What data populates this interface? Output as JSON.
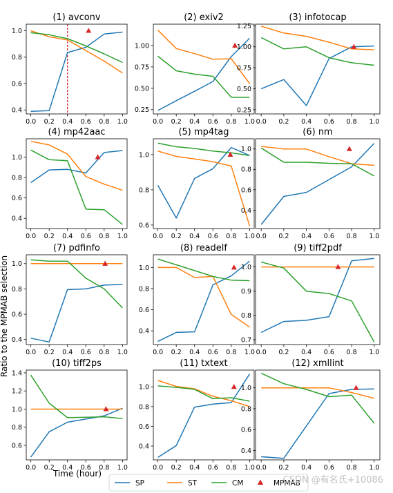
{
  "figure": {
    "ylabel": "Ratio to the MPMAB selection",
    "xlabel": "Time (hour)",
    "watermark": "CSDN @有名氏+10086",
    "colors": {
      "SP": "#1f77b4",
      "ST": "#ff7f0e",
      "CM": "#2ca02c",
      "MPMAB": "#d62728"
    }
  },
  "legend": [
    {
      "name": "SP",
      "label": "SP",
      "color": "#1f77b4",
      "kind": "line"
    },
    {
      "name": "ST",
      "label": "ST",
      "color": "#ff7f0e",
      "kind": "line"
    },
    {
      "name": "CM",
      "label": "CM",
      "color": "#2ca02c",
      "kind": "line"
    },
    {
      "name": "MPMAB",
      "label": "MPMAB",
      "color": "#d62728",
      "kind": "triangle"
    }
  ],
  "chart_data": [
    {
      "type": "line",
      "title": "(1) avconv",
      "x": [
        0,
        0.2,
        0.4,
        0.6,
        0.8,
        1.0
      ],
      "ylim": [
        0.37,
        1.05
      ],
      "yticks": [
        0.4,
        0.6,
        0.8,
        1.0
      ],
      "ytick_labels": [
        "0.4",
        "0.6",
        "0.8",
        "1.0"
      ],
      "series": [
        {
          "name": "SP",
          "values": [
            0.39,
            0.395,
            0.835,
            0.875,
            0.975,
            0.99
          ]
        },
        {
          "name": "ST",
          "values": [
            1.0,
            0.955,
            0.93,
            0.85,
            0.77,
            0.68
          ]
        },
        {
          "name": "CM",
          "values": [
            0.985,
            0.97,
            0.94,
            0.885,
            0.825,
            0.76
          ]
        }
      ],
      "mpmab": {
        "x": 0.63,
        "y": 1.0
      },
      "vline": 0.4
    },
    {
      "type": "line",
      "title": "(2) exiv2",
      "x": [
        0,
        0.2,
        0.4,
        0.6,
        0.8,
        1.0
      ],
      "ylim": [
        0.2,
        1.25
      ],
      "yticks": [
        0.25,
        0.5,
        0.75,
        1.0
      ],
      "ytick_labels": [
        "0.25",
        "0.50",
        "0.75",
        "1.00"
      ],
      "series": [
        {
          "name": "SP",
          "values": [
            0.24,
            0.355,
            0.465,
            0.58,
            0.87,
            1.085
          ]
        },
        {
          "name": "ST",
          "values": [
            1.18,
            0.965,
            0.905,
            0.84,
            0.845,
            0.555
          ]
        },
        {
          "name": "CM",
          "values": [
            0.875,
            0.705,
            0.665,
            0.64,
            0.395,
            0.395
          ]
        }
      ],
      "mpmab": {
        "x": 0.84,
        "y": 1.0
      }
    },
    {
      "type": "line",
      "title": "(3) infotocap",
      "x": [
        0,
        0.2,
        0.4,
        0.6,
        0.8,
        1.0
      ],
      "ylim": [
        0.2,
        1.27
      ],
      "yticks": [
        0.25,
        0.5,
        0.75,
        1.0,
        1.25
      ],
      "ytick_labels": [
        "0.25",
        "0.50",
        "0.75",
        "1.00",
        "1.25"
      ],
      "series": [
        {
          "name": "SP",
          "values": [
            0.5,
            0.61,
            0.3,
            0.86,
            1.0,
            1.01
          ]
        },
        {
          "name": "ST",
          "values": [
            1.245,
            1.165,
            1.125,
            1.055,
            0.975,
            0.965
          ]
        },
        {
          "name": "CM",
          "values": [
            1.11,
            0.975,
            1.0,
            0.87,
            0.81,
            0.78
          ]
        }
      ],
      "mpmab": {
        "x": 0.82,
        "y": 1.0
      }
    },
    {
      "type": "line",
      "title": "(4) mp42aac",
      "x": [
        0,
        0.2,
        0.4,
        0.6,
        0.8,
        1.0
      ],
      "ylim": [
        0.3,
        1.18
      ],
      "yticks": [
        0.4,
        0.6,
        0.8,
        1.0
      ],
      "ytick_labels": [
        "0.4",
        "0.6",
        "0.8",
        "1.0"
      ],
      "series": [
        {
          "name": "SP",
          "values": [
            0.75,
            0.875,
            0.88,
            0.845,
            1.045,
            1.065
          ]
        },
        {
          "name": "ST",
          "values": [
            1.155,
            1.12,
            1.03,
            0.81,
            0.735,
            0.675
          ]
        },
        {
          "name": "CM",
          "values": [
            1.07,
            0.975,
            0.965,
            0.49,
            0.485,
            0.34
          ]
        }
      ],
      "mpmab": {
        "x": 0.73,
        "y": 1.0
      }
    },
    {
      "type": "line",
      "title": "(5) mp4tag",
      "x": [
        0,
        0.2,
        0.4,
        0.6,
        0.8,
        1.0
      ],
      "ylim": [
        0.58,
        1.09
      ],
      "yticks": [
        0.6,
        0.8,
        1.0
      ],
      "ytick_labels": [
        "0.6",
        "0.8",
        "1.0"
      ],
      "series": [
        {
          "name": "SP",
          "values": [
            0.825,
            0.64,
            0.865,
            0.92,
            1.04,
            0.995
          ]
        },
        {
          "name": "ST",
          "values": [
            1.02,
            0.99,
            0.975,
            0.96,
            0.935,
            0.595
          ]
        },
        {
          "name": "CM",
          "values": [
            1.065,
            1.045,
            1.035,
            1.02,
            1.01,
            0.995
          ]
        }
      ],
      "mpmab": {
        "x": 0.79,
        "y": 1.0
      }
    },
    {
      "type": "line",
      "title": "(6) nm",
      "x": [
        0,
        0.2,
        0.4,
        0.6,
        0.8,
        1.0
      ],
      "ylim": [
        0.22,
        1.1
      ],
      "yticks": [
        0.4,
        0.6,
        0.8,
        1.0
      ],
      "ytick_labels": [
        "0.4",
        "0.6",
        "0.8",
        "1.0"
      ],
      "series": [
        {
          "name": "SP",
          "values": [
            0.26,
            0.535,
            0.575,
            0.7,
            0.825,
            1.055
          ]
        },
        {
          "name": "ST",
          "values": [
            1.025,
            1.0,
            1.0,
            0.925,
            0.855,
            0.84
          ]
        },
        {
          "name": "CM",
          "values": [
            1.01,
            0.87,
            0.87,
            0.86,
            0.855,
            0.735
          ]
        }
      ],
      "mpmab": {
        "x": 0.78,
        "y": 1.0
      }
    },
    {
      "type": "line",
      "title": "(7) pdfinfo",
      "x": [
        0,
        0.2,
        0.4,
        0.6,
        0.8,
        1.0
      ],
      "ylim": [
        0.36,
        1.07
      ],
      "yticks": [
        0.4,
        0.6,
        0.8,
        1.0
      ],
      "ytick_labels": [
        "0.4",
        "0.6",
        "0.8",
        "1.0"
      ],
      "series": [
        {
          "name": "SP",
          "values": [
            0.41,
            0.38,
            0.795,
            0.8,
            0.83,
            0.835
          ]
        },
        {
          "name": "ST",
          "values": [
            1.0,
            1.0,
            1.0,
            1.0,
            1.0,
            1.0
          ]
        },
        {
          "name": "CM",
          "values": [
            1.03,
            1.02,
            1.02,
            0.885,
            0.8,
            0.65
          ]
        }
      ],
      "mpmab": {
        "x": 0.81,
        "y": 1.0
      }
    },
    {
      "type": "line",
      "title": "(8) readelf",
      "x": [
        0,
        0.2,
        0.4,
        0.6,
        0.8,
        1.0
      ],
      "ylim": [
        0.27,
        1.12
      ],
      "yticks": [
        0.4,
        0.6,
        0.8,
        1.0
      ],
      "ytick_labels": [
        "0.4",
        "0.6",
        "0.8",
        "1.0"
      ],
      "series": [
        {
          "name": "SP",
          "values": [
            0.3,
            0.385,
            0.39,
            0.835,
            0.92,
            1.06
          ]
        },
        {
          "name": "ST",
          "values": [
            1.0,
            1.0,
            0.905,
            0.915,
            0.555,
            0.435
          ]
        },
        {
          "name": "CM",
          "values": [
            1.08,
            1.025,
            0.97,
            0.915,
            0.88,
            0.875
          ]
        }
      ],
      "mpmab": {
        "x": 0.83,
        "y": 1.0
      }
    },
    {
      "type": "line",
      "title": "(9) tiff2pdf",
      "x": [
        0,
        0.2,
        0.4,
        0.6,
        0.8,
        1.0
      ],
      "ylim": [
        0.68,
        1.05
      ],
      "yticks": [
        0.7,
        0.8,
        0.9,
        1.0
      ],
      "ytick_labels": [
        "0.7",
        "0.8",
        "0.9",
        "1.0"
      ],
      "series": [
        {
          "name": "SP",
          "values": [
            0.73,
            0.775,
            0.78,
            0.795,
            1.025,
            1.035
          ]
        },
        {
          "name": "ST",
          "values": [
            1.0,
            1.0,
            1.0,
            1.0,
            1.0,
            1.0
          ]
        },
        {
          "name": "CM",
          "values": [
            1.02,
            0.995,
            0.9,
            0.89,
            0.86,
            0.69
          ]
        }
      ],
      "mpmab": {
        "x": 0.68,
        "y": 1.0
      }
    },
    {
      "type": "line",
      "title": "(10) tiff2ps",
      "x": [
        0,
        0.2,
        0.4,
        0.6,
        0.8,
        1.0
      ],
      "ylim": [
        0.44,
        1.43
      ],
      "yticks": [
        0.6,
        0.8,
        1.0,
        1.2,
        1.4
      ],
      "ytick_labels": [
        "0.6",
        "0.8",
        "1.0",
        "1.2",
        "1.4"
      ],
      "series": [
        {
          "name": "SP",
          "values": [
            0.47,
            0.75,
            0.855,
            0.89,
            0.925,
            1.01
          ]
        },
        {
          "name": "ST",
          "values": [
            1.0,
            1.0,
            1.0,
            1.0,
            1.0,
            1.0
          ]
        },
        {
          "name": "CM",
          "values": [
            1.375,
            1.065,
            0.905,
            0.91,
            0.915,
            0.895
          ]
        }
      ],
      "mpmab": {
        "x": 0.82,
        "y": 1.0
      }
    },
    {
      "type": "line",
      "title": "(11) txtext",
      "x": [
        0,
        0.2,
        0.4,
        0.6,
        0.8,
        1.0
      ],
      "ylim": [
        0.26,
        1.17
      ],
      "yticks": [
        0.4,
        0.6,
        0.8,
        1.0
      ],
      "ytick_labels": [
        "0.4",
        "0.6",
        "0.8",
        "1.0"
      ],
      "series": [
        {
          "name": "SP",
          "values": [
            0.285,
            0.405,
            0.795,
            0.825,
            0.84,
            1.13
          ]
        },
        {
          "name": "ST",
          "values": [
            1.065,
            1.005,
            0.98,
            0.905,
            0.86,
            0.8
          ]
        },
        {
          "name": "CM",
          "values": [
            1.01,
            0.995,
            0.975,
            0.88,
            0.89,
            0.855
          ]
        }
      ],
      "mpmab": {
        "x": 0.83,
        "y": 1.0
      }
    },
    {
      "type": "line",
      "title": "(12) xmllint",
      "x": [
        0,
        0.2,
        0.4,
        0.6,
        0.8,
        1.0
      ],
      "ylim": [
        0.31,
        1.17
      ],
      "yticks": [
        0.4,
        0.6,
        0.8,
        1.0
      ],
      "ytick_labels": [
        "0.4",
        "0.6",
        "0.8",
        "1.0"
      ],
      "series": [
        {
          "name": "SP",
          "values": [
            0.34,
            0.325,
            0.635,
            0.945,
            0.985,
            0.99
          ]
        },
        {
          "name": "ST",
          "values": [
            1.0,
            1.0,
            1.0,
            1.0,
            0.955,
            0.9
          ]
        },
        {
          "name": "CM",
          "values": [
            1.14,
            1.04,
            0.985,
            0.915,
            0.93,
            0.66
          ]
        }
      ],
      "mpmab": {
        "x": 0.84,
        "y": 1.0
      }
    }
  ],
  "xticks": [
    0,
    0.2,
    0.4,
    0.6,
    0.8,
    1.0
  ],
  "xtick_labels": [
    "0.0",
    "0.2",
    "0.4",
    "0.6",
    "0.8",
    "1.0"
  ]
}
